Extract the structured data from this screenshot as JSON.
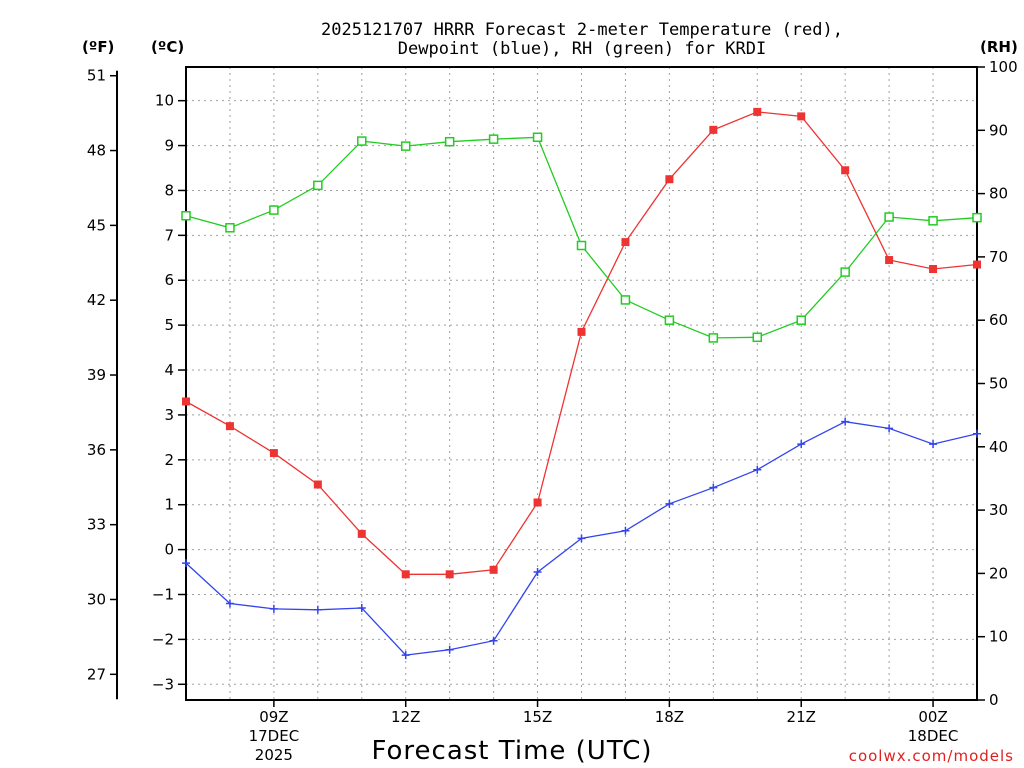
{
  "chart_data": {
    "type": "line",
    "title_line1": "2025121707 HRRR Forecast 2-meter Temperature (red),",
    "title_line2": "Dewpoint (blue), RH (green) for KRDI",
    "units": {
      "fahrenheit": "(ºF)",
      "celsius": "(ºC)",
      "rh": "(RH)"
    },
    "xlabel": "Forecast Time (UTC)",
    "credit": "coolwx.com/models",
    "x_hours": [
      7,
      8,
      9,
      10,
      11,
      12,
      13,
      14,
      15,
      16,
      17,
      18,
      19,
      20,
      21,
      22,
      23,
      24,
      25
    ],
    "xlim": [
      7,
      25
    ],
    "x_ticks": [
      {
        "hour": 9,
        "label": "09Z",
        "sub1": "17DEC",
        "sub2": "2025"
      },
      {
        "hour": 12,
        "label": "12Z"
      },
      {
        "hour": 15,
        "label": "15Z"
      },
      {
        "hour": 18,
        "label": "18Z"
      },
      {
        "hour": 21,
        "label": "21Z"
      },
      {
        "hour": 24,
        "label": "00Z",
        "sub1": "18DEC"
      }
    ],
    "celsius_axis": {
      "ylim": [
        -3.35,
        10.75
      ],
      "ticks": [
        "-3",
        "-2",
        "-1",
        "0",
        "1",
        "2",
        "3",
        "4",
        "5",
        "6",
        "7",
        "8",
        "9",
        "10"
      ]
    },
    "fahrenheit_axis": {
      "ticks": [
        "27",
        "30",
        "33",
        "36",
        "39",
        "42",
        "45",
        "48",
        "51"
      ]
    },
    "rh_axis": {
      "ylim": [
        0,
        100
      ],
      "ticks": [
        "0",
        "10",
        "20",
        "30",
        "40",
        "50",
        "60",
        "70",
        "80",
        "90",
        "100"
      ]
    },
    "series": [
      {
        "name": "Temperature",
        "axis": "celsius",
        "color": "#ee3333",
        "marker": "filled-square",
        "values": [
          3.3,
          2.75,
          2.15,
          1.45,
          0.35,
          -0.55,
          -0.55,
          -0.45,
          1.05,
          4.85,
          6.85,
          8.25,
          9.35,
          9.75,
          9.65,
          8.45,
          6.45,
          6.25,
          6.35
        ]
      },
      {
        "name": "Dewpoint",
        "axis": "celsius",
        "color": "#3344ee",
        "marker": "plus",
        "values": [
          -0.3,
          -1.2,
          -1.32,
          -1.34,
          -1.3,
          -2.35,
          -2.23,
          -2.03,
          -0.5,
          0.25,
          0.42,
          1.02,
          1.38,
          1.78,
          2.35,
          2.85,
          2.7,
          2.35,
          2.58
        ]
      },
      {
        "name": "RH",
        "axis": "rh",
        "color": "#22cc22",
        "marker": "open-square",
        "values": [
          76.5,
          74.6,
          77.4,
          81.3,
          88.3,
          87.5,
          88.2,
          88.6,
          88.9,
          71.8,
          63.2,
          60.0,
          57.2,
          57.3,
          60.0,
          67.6,
          76.3,
          75.7,
          76.2
        ]
      }
    ]
  }
}
